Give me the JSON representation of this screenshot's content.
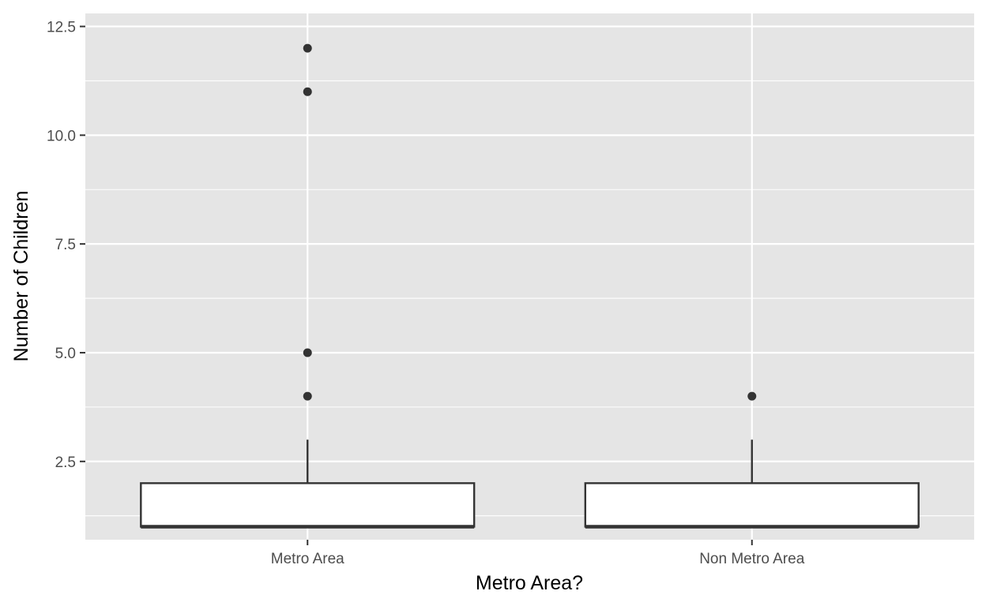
{
  "chart_data": {
    "type": "boxplot",
    "title": "",
    "xlabel": "Metro Area?",
    "ylabel": "Number of Children",
    "categories": [
      "Metro Area",
      "Non Metro Area"
    ],
    "ylim": [
      0.7,
      12.8
    ],
    "y_ticks": [
      2.5,
      5.0,
      7.5,
      10.0,
      12.5
    ],
    "y_tick_labels": [
      "2.5",
      "5.0",
      "7.5",
      "10.0",
      "12.5"
    ],
    "grid": true,
    "boxes": [
      {
        "category": "Metro Area",
        "min": 1,
        "q1": 1,
        "median": 1,
        "q3": 2,
        "max": 3,
        "outliers": [
          4,
          5,
          11,
          12
        ]
      },
      {
        "category": "Non Metro Area",
        "min": 1,
        "q1": 1,
        "median": 1,
        "q3": 2,
        "max": 3,
        "outliers": [
          4
        ]
      }
    ],
    "colors": {
      "panel": "#e5e5e5",
      "grid": "#ffffff",
      "box_fill": "#ffffff",
      "stroke": "#333333",
      "outlier": "#333333"
    }
  }
}
